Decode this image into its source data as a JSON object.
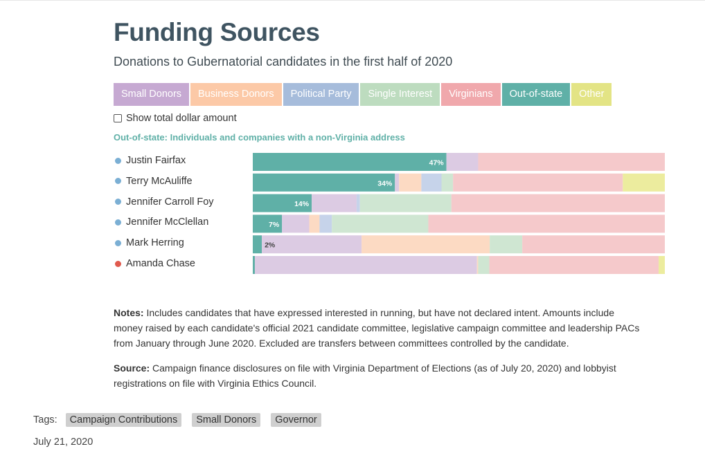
{
  "title": "Funding Sources",
  "subtitle": "Donations to Gubernatorial candidates in the first half of 2020",
  "legend": [
    {
      "label": "Small Donors",
      "color": "#c6a9d2"
    },
    {
      "label": "Business Donors",
      "color": "#fcc9a7"
    },
    {
      "label": "Political Party",
      "color": "#a6bcdb"
    },
    {
      "label": "Single Interest",
      "color": "#bddcbf"
    },
    {
      "label": "Virginians",
      "color": "#f0a8ac"
    },
    {
      "label": "Out-of-state",
      "color": "#5fb0a7"
    },
    {
      "label": "Other",
      "color": "#e3e485"
    }
  ],
  "checkbox_label": "Show total dollar amount",
  "description": "Out-of-state: Individuals and companies with a non-Virginia address",
  "chart_data": {
    "type": "bar",
    "orientation": "horizontal-stacked-100",
    "highlighted_series": "Out-of-state",
    "categories": [
      "Justin Fairfax",
      "Terry McAuliffe",
      "Jennifer Carroll Foy",
      "Jennifer McClellan",
      "Mark Herring",
      "Amanda Chase"
    ],
    "party_colors": [
      "#7bafd4",
      "#7bafd4",
      "#7bafd4",
      "#7bafd4",
      "#7bafd4",
      "#e05a4e"
    ],
    "data_labels": [
      "47%",
      "34%",
      "14%",
      "7%",
      "2%",
      ""
    ],
    "series": [
      {
        "name": "Out-of-state",
        "color": "#5fb0a7",
        "values": [
          47,
          34.5,
          14.3,
          7.1,
          2.2,
          0.5
        ]
      },
      {
        "name": "Small Donors",
        "color": "#dccbe3",
        "values": [
          7.7,
          1.0,
          10.9,
          6.6,
          24.2,
          53.9
        ]
      },
      {
        "name": "Business Donors",
        "color": "#fcdac3",
        "values": [
          0,
          5.4,
          0,
          2.5,
          31.1,
          0.3
        ]
      },
      {
        "name": "Political Party",
        "color": "#c6d3ea",
        "values": [
          0,
          4.9,
          0.8,
          3.0,
          0,
          0
        ]
      },
      {
        "name": "Single Interest",
        "color": "#cfe6d2",
        "values": [
          0,
          2.8,
          22.2,
          23.4,
          7.9,
          2.7
        ]
      },
      {
        "name": "Virginians",
        "color": "#f5c9cb",
        "values": [
          45.3,
          41.2,
          51.8,
          57.4,
          34.6,
          41.1
        ]
      },
      {
        "name": "Other",
        "color": "#ecec9e",
        "values": [
          0,
          10.2,
          0,
          0,
          0,
          1.5
        ]
      }
    ]
  },
  "notes": {
    "label": "Notes:",
    "text": " Includes candidates that have expressed interested in running, but have not declared intent. Amounts include money raised by each candidate's official 2021 candidate committee, legislative campaign committee and leadership PACs from January through June 2020. Excluded are transfers between committees controlled by the candidate."
  },
  "source": {
    "label": "Source:",
    "text": " Campaign finance disclosures on file with Virginia Department of Elections (as of July 20, 2020) and lobbyist registrations on file with Virginia Ethics Council."
  },
  "tags": {
    "label": "Tags:",
    "items": [
      "Campaign Contributions",
      "Small Donors",
      "Governor"
    ]
  },
  "date": "July 21, 2020"
}
